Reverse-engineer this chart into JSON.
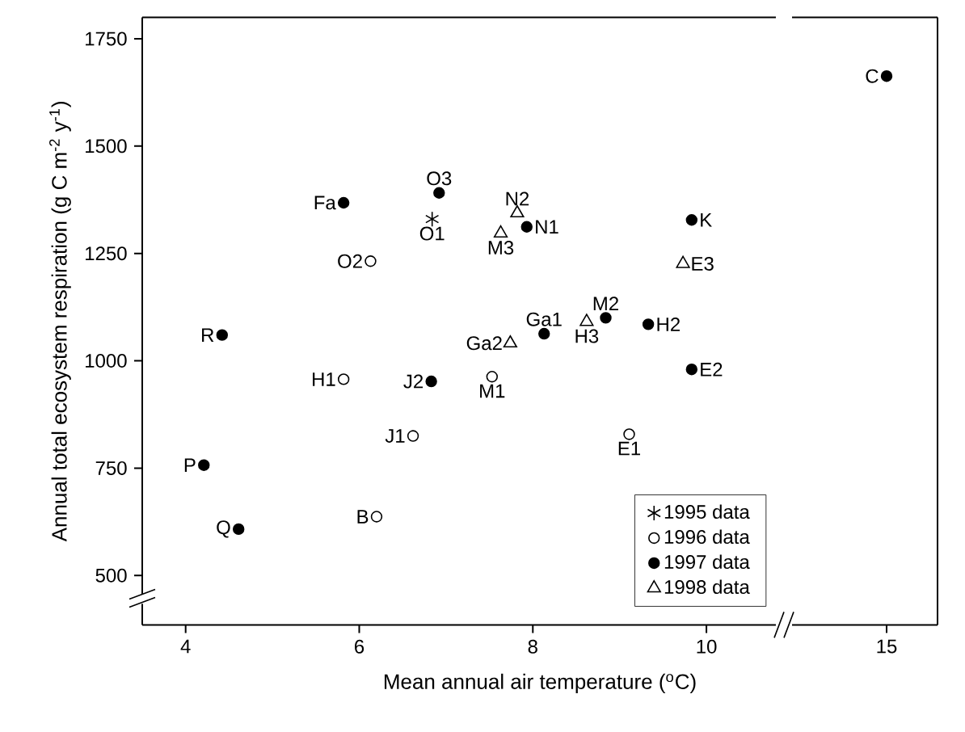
{
  "chart_data": [
    {
      "type": "scatter",
      "xlabel": "Mean annual air temperature ($^{o}$C)",
      "ylabel": "Annual total ecosystem respiration (g C m$^{-2}$ y$^{-1}$)",
      "xlim": [
        3.5,
        10.8
      ],
      "ylim": [
        385,
        1800
      ],
      "xticks": [
        4,
        6,
        8,
        10
      ],
      "yticks": [
        500,
        750,
        1000,
        1250,
        1500,
        1750
      ],
      "legend": "bottom right",
      "grid": false,
      "series": [
        {
          "name": "1995 data",
          "color": "#000000",
          "marker": "cross",
          "x": [
            6.84
          ],
          "values": [
            1330
          ]
        },
        {
          "name": "1996 data",
          "color": "#000000",
          "marker": "circle",
          "x": [
            6.13,
            5.82,
            7.53,
            6.62,
            6.2,
            9.11
          ],
          "values": [
            1232,
            957,
            963,
            825,
            637,
            829
          ]
        },
        {
          "name": "1997 data",
          "color": "#000000",
          "marker": "circle",
          "x": [
            5.82,
            6.92,
            7.93,
            4.42,
            6.83,
            4.21,
            4.61,
            9.83,
            8.13,
            8.84,
            9.33,
            9.83
          ],
          "values": [
            1368,
            1391,
            1312,
            1060,
            952,
            757,
            608,
            1328,
            1063,
            1100,
            1085,
            980
          ]
        },
        {
          "name": "1998 data",
          "color": "#000000",
          "marker": "triangle",
          "x": [
            7.82,
            7.63,
            7.74,
            9.73,
            8.62
          ],
          "values": [
            1344,
            1297,
            1041,
            1226,
            1091
          ]
        }
      ],
      "annotations": [
        {
          "text": "O1",
          "x": 6.84,
          "y": 1330
        },
        {
          "text": "O2",
          "x": 6.13,
          "y": 1232
        },
        {
          "text": "H1",
          "x": 5.82,
          "y": 957
        },
        {
          "text": "M1",
          "x": 7.53,
          "y": 963
        },
        {
          "text": "J1",
          "x": 6.62,
          "y": 825
        },
        {
          "text": "B",
          "x": 6.2,
          "y": 637
        },
        {
          "text": "E1",
          "x": 9.11,
          "y": 829
        },
        {
          "text": "Fa",
          "x": 5.82,
          "y": 1368
        },
        {
          "text": "O3",
          "x": 6.92,
          "y": 1391
        },
        {
          "text": "N1",
          "x": 7.93,
          "y": 1312
        },
        {
          "text": "R",
          "x": 4.42,
          "y": 1060
        },
        {
          "text": "J2",
          "x": 6.83,
          "y": 952
        },
        {
          "text": "P",
          "x": 4.21,
          "y": 757
        },
        {
          "text": "Q",
          "x": 4.61,
          "y": 608
        },
        {
          "text": "K",
          "x": 9.83,
          "y": 1328
        },
        {
          "text": "Ga1",
          "x": 8.13,
          "y": 1063
        },
        {
          "text": "M2",
          "x": 8.84,
          "y": 1100
        },
        {
          "text": "H2",
          "x": 9.33,
          "y": 1085
        },
        {
          "text": "E2",
          "x": 9.83,
          "y": 980
        },
        {
          "text": "N2",
          "x": 7.82,
          "y": 1344
        },
        {
          "text": "M3",
          "x": 7.63,
          "y": 1297
        },
        {
          "text": "Ga2",
          "x": 7.74,
          "y": 1041
        },
        {
          "text": "E3",
          "x": 9.73,
          "y": 1226
        },
        {
          "text": "H3",
          "x": 8.62,
          "y": 1091
        }
      ]
    },
    {
      "type": "scatter",
      "categories": [
        "15"
      ],
      "ylim": [
        385,
        1800
      ],
      "tick_labels": "x",
      "series": [
        {
          "color": "#000000",
          "marker": "circle",
          "values": [
            1663
          ]
        }
      ],
      "annotations": [
        {
          "text": "C",
          "x": "15",
          "y": 1663
        }
      ]
    }
  ]
}
